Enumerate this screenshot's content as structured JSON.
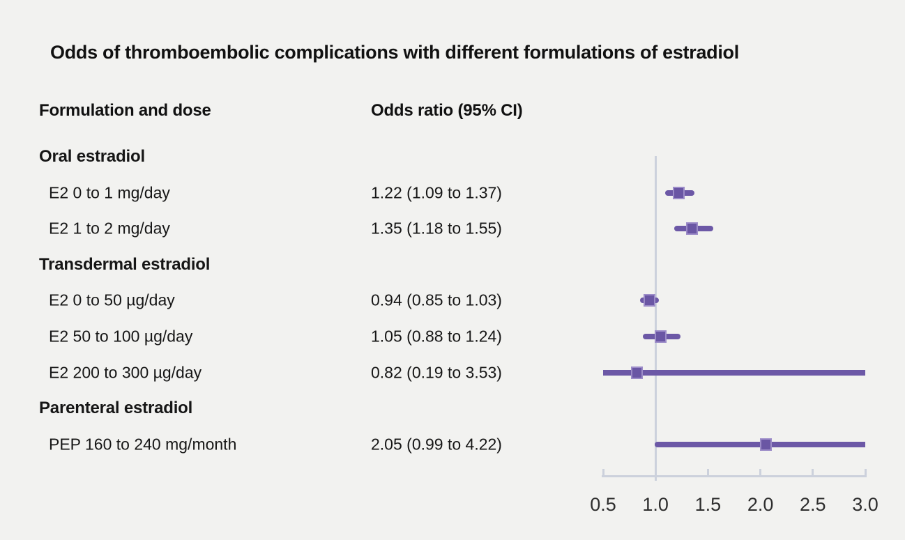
{
  "title": "Odds of thromboembolic complications with different formulations of estradiol",
  "columns": {
    "formulation": "Formulation and dose",
    "odds_ratio": "Odds ratio (95% CI)"
  },
  "chart_data": {
    "type": "forest",
    "title": "Odds of thromboembolic complications with different formulations of estradiol",
    "xlabel": "Odds ratio",
    "axis": {
      "min": 0.5,
      "max": 3.0,
      "ticks": [
        0.5,
        1.0,
        1.5,
        2.0,
        2.5,
        3.0
      ],
      "tick_labels": [
        "0.5",
        "1.0",
        "1.5",
        "2.0",
        "2.5",
        "3.0"
      ],
      "reference_line": 1.0,
      "grid": false
    },
    "rows": [
      {
        "type": "group",
        "label": "Oral estradiol"
      },
      {
        "type": "item",
        "label": "E2 0 to 1 mg/day",
        "or_text": "1.22 (1.09 to 1.37)",
        "est": 1.22,
        "lo": 1.09,
        "hi": 1.37
      },
      {
        "type": "item",
        "label": "E2 1 to 2 mg/day",
        "or_text": "1.35 (1.18 to 1.55)",
        "est": 1.35,
        "lo": 1.18,
        "hi": 1.55
      },
      {
        "type": "group",
        "label": "Transdermal estradiol"
      },
      {
        "type": "item",
        "label": "E2 0 to 50 µg/day",
        "or_text": "0.94 (0.85 to 1.03)",
        "est": 0.94,
        "lo": 0.85,
        "hi": 1.03
      },
      {
        "type": "item",
        "label": "E2 50 to 100 µg/day",
        "or_text": "1.05 (0.88 to 1.24)",
        "est": 1.05,
        "lo": 0.88,
        "hi": 1.24
      },
      {
        "type": "item",
        "label": "E2 200 to 300 µg/day",
        "or_text": "0.82 (0.19 to 3.53)",
        "est": 0.82,
        "lo": 0.19,
        "hi": 3.53
      },
      {
        "type": "group",
        "label": "Parenteral estradiol"
      },
      {
        "type": "item",
        "label": "PEP 160 to 240 mg/month",
        "or_text": "2.05 (0.99 to 4.22)",
        "est": 2.05,
        "lo": 0.99,
        "hi": 4.22
      }
    ]
  },
  "colors": {
    "background": "#f2f2f0",
    "ci_line": "#6c58a6",
    "marker_fill": "#6a56a4",
    "marker_border": "#9c8cc8",
    "axis": "#ccd1dc",
    "text": "#141414"
  }
}
